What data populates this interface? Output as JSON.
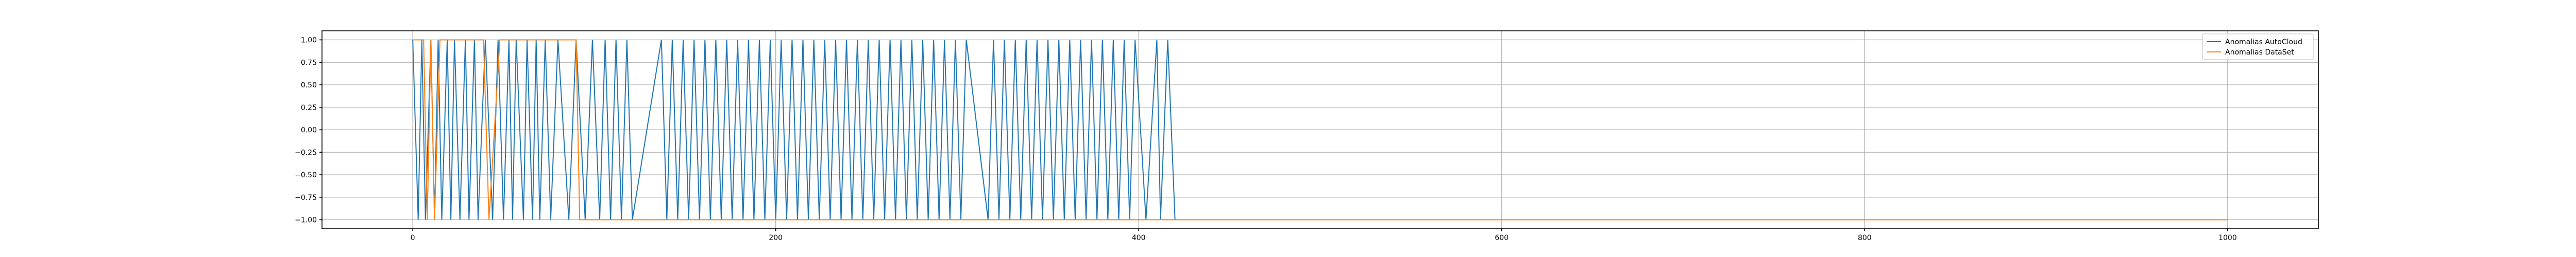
{
  "chart_data": {
    "type": "line",
    "title": "",
    "xlabel": "",
    "ylabel": "",
    "xlim": [
      -50,
      1050
    ],
    "ylim": [
      -1.1,
      1.1
    ],
    "xticks": [
      0,
      200,
      400,
      600,
      800,
      1000
    ],
    "xtick_labels": [
      "0",
      "200",
      "400",
      "600",
      "800",
      "1000"
    ],
    "yticks": [
      1.0,
      0.75,
      0.5,
      0.25,
      0.0,
      -0.25,
      -0.5,
      -0.75,
      -1.0
    ],
    "ytick_labels": [
      "1.00",
      "0.75",
      "0.50",
      "0.25",
      "0.00",
      "−0.25",
      "−0.50",
      "−0.75",
      "−1.00"
    ],
    "grid": true,
    "legend_location": "upper right",
    "series": [
      {
        "name": "Anomalias AutoCloud",
        "color": "#1f77b4",
        "x_range": [
          0,
          420
        ],
        "x": [
          0,
          3,
          5,
          7,
          10,
          12,
          14,
          16,
          19,
          21,
          23,
          26,
          29,
          31,
          34,
          36,
          40,
          44,
          47,
          50,
          53,
          55,
          57,
          61,
          63,
          66,
          68,
          70,
          73,
          76,
          80,
          86,
          90,
          95,
          99,
          103,
          106,
          109,
          112,
          115,
          118,
          121,
          137,
          140,
          143,
          146,
          149,
          152,
          155,
          158,
          161,
          164,
          167,
          170,
          173,
          176,
          179,
          182,
          185,
          188,
          191,
          194,
          197,
          200,
          203,
          206,
          209,
          212,
          215,
          218,
          221,
          224,
          227,
          230,
          233,
          236,
          239,
          242,
          245,
          248,
          251,
          254,
          257,
          260,
          263,
          266,
          269,
          272,
          275,
          278,
          281,
          284,
          287,
          290,
          293,
          296,
          299,
          302,
          305,
          317,
          320,
          323,
          326,
          329,
          332,
          335,
          338,
          341,
          344,
          347,
          350,
          353,
          356,
          359,
          362,
          365,
          368,
          371,
          374,
          377,
          380,
          383,
          386,
          389,
          392,
          395,
          398,
          404,
          410,
          412,
          416,
          420
        ],
        "values": [
          1,
          -1,
          1,
          -1,
          1,
          -1,
          1,
          -1,
          1,
          -1,
          1,
          -1,
          1,
          -1,
          1,
          -1,
          1,
          -1,
          1,
          -1,
          1,
          -1,
          1,
          -1,
          1,
          -1,
          1,
          -1,
          1,
          -1,
          1,
          -1,
          1,
          -1,
          1,
          -1,
          1,
          -1,
          1,
          -1,
          1,
          -1,
          1,
          -1,
          1,
          -1,
          1,
          -1,
          1,
          -1,
          1,
          -1,
          1,
          -1,
          1,
          -1,
          1,
          -1,
          1,
          -1,
          1,
          -1,
          1,
          -1,
          1,
          -1,
          1,
          -1,
          1,
          -1,
          1,
          -1,
          1,
          -1,
          1,
          -1,
          1,
          -1,
          1,
          -1,
          1,
          -1,
          1,
          -1,
          1,
          -1,
          1,
          -1,
          1,
          -1,
          1,
          -1,
          1,
          -1,
          1,
          -1,
          1,
          -1,
          1,
          -1,
          1,
          -1,
          1,
          -1,
          1,
          -1,
          1,
          -1,
          1,
          -1,
          1,
          -1,
          1,
          -1,
          1,
          -1,
          1,
          -1,
          1,
          -1,
          1,
          -1,
          1,
          -1,
          1,
          -1,
          1,
          -1,
          1,
          -1,
          1,
          -1
        ]
      },
      {
        "name": "Anomalias DataSet",
        "color": "#ff7f0e",
        "x_range": [
          0,
          1000
        ],
        "x": [
          0,
          6,
          8,
          10,
          12,
          15,
          18,
          22,
          35,
          39,
          42,
          48,
          50,
          90,
          92,
          1000
        ],
        "values": [
          1,
          1,
          -1,
          1,
          -1,
          1,
          1,
          1,
          1,
          1,
          -1,
          1,
          1,
          1,
          -1,
          -1
        ]
      }
    ]
  }
}
